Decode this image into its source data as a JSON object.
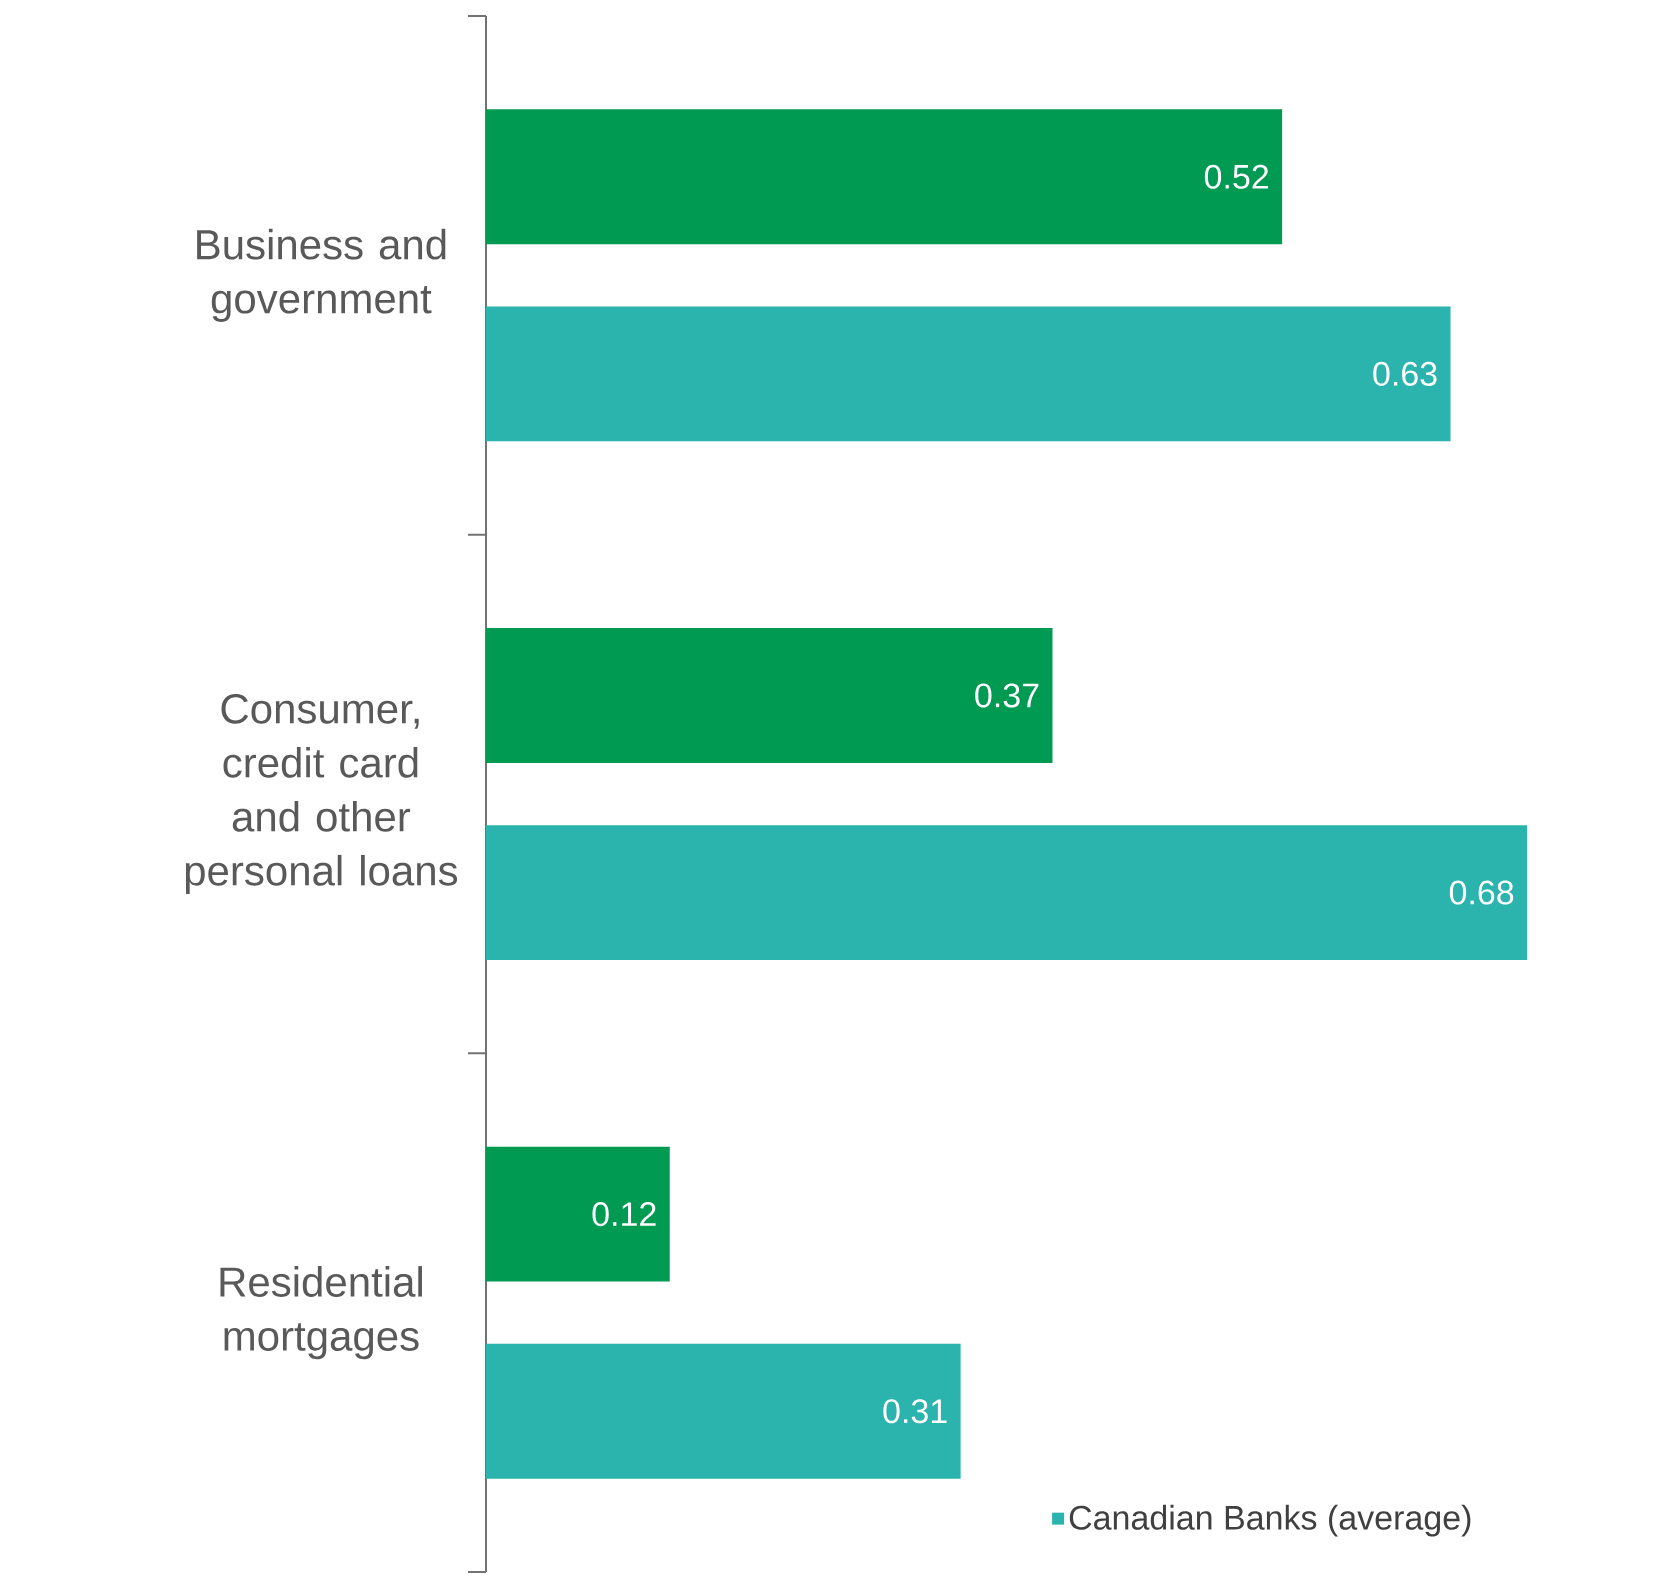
{
  "chart_data": {
    "type": "bar",
    "orientation": "horizontal",
    "categories": [
      "Business and government",
      "Consumer, credit card and other personal loans",
      "Residential mortgages"
    ],
    "series": [
      {
        "color": "#009a52",
        "values": [
          0.52,
          0.37,
          0.12
        ]
      },
      {
        "name": "Canadian Banks (average)",
        "color": "#2bb3ae",
        "values": [
          0.63,
          0.68,
          0.31
        ]
      }
    ],
    "data_labels": true,
    "grid": false,
    "legend": "bottom right",
    "tick_labels": "y"
  }
}
